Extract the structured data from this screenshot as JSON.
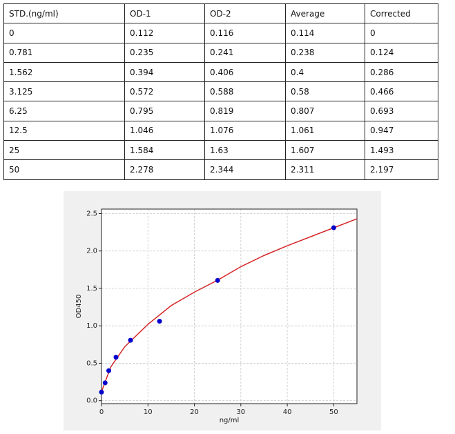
{
  "table": {
    "header": [
      "STD.(ng/ml)",
      "OD-1",
      "OD-2",
      "Average",
      "Corrected"
    ],
    "rows": [
      [
        "0",
        "0.112",
        "0.116",
        "0.114",
        "0"
      ],
      [
        "0.781",
        "0.235",
        "0.241",
        "0.238",
        "0.124"
      ],
      [
        "1.562",
        "0.394",
        "0.406",
        "0.4",
        "0.286"
      ],
      [
        "3.125",
        "0.572",
        "0.588",
        "0.58",
        "0.466"
      ],
      [
        "6.25",
        "0.795",
        "0.819",
        "0.807",
        "0.693"
      ],
      [
        "12.5",
        "1.046",
        "1.076",
        "1.061",
        "0.947"
      ],
      [
        "25",
        "1.584",
        "1.63",
        "1.607",
        "1.493"
      ],
      [
        "50",
        "2.278",
        "2.344",
        "2.311",
        "2.197"
      ]
    ]
  },
  "chart_data": {
    "type": "scatter",
    "x_label": "ng/ml",
    "y_label": "OD450",
    "xlim": [
      0,
      55
    ],
    "ylim": [
      -0.04,
      2.56
    ],
    "xticks": [
      0,
      10,
      20,
      30,
      40,
      50
    ],
    "yticks": [
      {
        "value": 0,
        "label": "0.0"
      },
      0.5,
      {
        "value": 1,
        "label": "1.0"
      },
      1.5,
      {
        "value": 2,
        "label": "2.0"
      },
      2.5
    ],
    "grid": true,
    "series": [
      {
        "type": "line",
        "color": "#d62728",
        "x": [
          0,
          2,
          5,
          10,
          15,
          20,
          25,
          30,
          35,
          40,
          45,
          50,
          55
        ],
        "values": [
          0.12,
          0.45,
          0.72,
          1.02,
          1.27,
          1.45,
          1.61,
          1.79,
          1.94,
          2.07,
          2.19,
          2.31,
          2.43
        ]
      },
      {
        "type": "scatter",
        "color": "#0000cc",
        "x": [
          0,
          0.781,
          1.562,
          3.125,
          6.25,
          12.5,
          25,
          50
        ],
        "values": [
          0.114,
          0.238,
          0.4,
          0.58,
          0.807,
          1.061,
          1.607,
          2.311
        ]
      }
    ]
  }
}
